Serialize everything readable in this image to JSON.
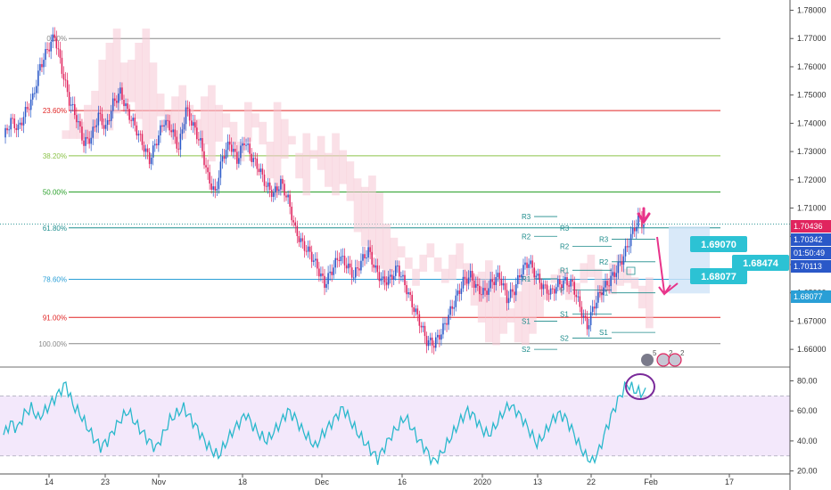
{
  "chart_data": [
    {
      "type": "candlestick",
      "title": "",
      "colors": {
        "up": "#2a58c8",
        "down": "#e0245e",
        "ichimoku_cloud": "#f6c6d4",
        "annotation": "#e8338a",
        "label_box": "#2cc2d4"
      },
      "y_ticks": [
        "1.78000",
        "1.77000",
        "1.76000",
        "1.75000",
        "1.74000",
        "1.73000",
        "1.72000",
        "1.71000",
        "1.70000",
        "1.69000",
        "1.68000",
        "1.67000",
        "1.66000"
      ],
      "ylim": [
        1.655,
        1.783
      ],
      "x_ticks": [
        "14",
        "23",
        "Nov",
        "18",
        "Dec",
        "16",
        "2020",
        "13",
        "22",
        "Feb",
        "17"
      ],
      "close_series": [
        1.735,
        1.741,
        1.738,
        1.744,
        1.749,
        1.76,
        1.766,
        1.771,
        1.759,
        1.748,
        1.742,
        1.733,
        1.735,
        1.743,
        1.738,
        1.747,
        1.751,
        1.744,
        1.739,
        1.733,
        1.727,
        1.734,
        1.741,
        1.738,
        1.731,
        1.745,
        1.739,
        1.733,
        1.721,
        1.715,
        1.728,
        1.733,
        1.727,
        1.734,
        1.728,
        1.724,
        1.718,
        1.715,
        1.719,
        1.713,
        1.702,
        1.697,
        1.694,
        1.689,
        1.683,
        1.688,
        1.693,
        1.69,
        1.686,
        1.691,
        1.695,
        1.688,
        1.684,
        1.685,
        1.689,
        1.683,
        1.676,
        1.67,
        1.663,
        1.662,
        1.666,
        1.672,
        1.678,
        1.684,
        1.686,
        1.681,
        1.68,
        1.684,
        1.686,
        1.678,
        1.681,
        1.688,
        1.691,
        1.686,
        1.682,
        1.68,
        1.683,
        1.684,
        1.683,
        1.675,
        1.668,
        1.676,
        1.681,
        1.684,
        1.688,
        1.693,
        1.7,
        1.706,
        1.704
      ],
      "fibonacci_levels": [
        {
          "label": "0.00%",
          "price": 1.77,
          "color": "#888888"
        },
        {
          "label": "23.60%",
          "price": 1.7445,
          "color": "#e02424"
        },
        {
          "label": "38.20%",
          "price": 1.7285,
          "color": "#8cc34a"
        },
        {
          "label": "50.00%",
          "price": 1.7157,
          "color": "#2aa02a"
        },
        {
          "label": "61.80%",
          "price": 1.703,
          "color": "#1f8f8f"
        },
        {
          "label": "78.60%",
          "price": 1.6848,
          "color": "#2a9fd6"
        },
        {
          "label": "91.00%",
          "price": 1.6713,
          "color": "#e02424"
        },
        {
          "label": "100.00%",
          "price": 1.662,
          "color": "#888888"
        }
      ],
      "pivot_labels": [
        {
          "label": "R3",
          "price": 1.707,
          "period": 1
        },
        {
          "label": "R2",
          "price": 1.7,
          "period": 1
        },
        {
          "label": "R1",
          "price": 1.685,
          "period": 1
        },
        {
          "label": "S1",
          "price": 1.67,
          "period": 1
        },
        {
          "label": "S2",
          "price": 1.66,
          "period": 1
        },
        {
          "label": "R3",
          "price": 1.703,
          "period": 2
        },
        {
          "label": "R2",
          "price": 1.6965,
          "period": 2
        },
        {
          "label": "R1",
          "price": 1.688,
          "period": 2
        },
        {
          "label": "P",
          "price": 1.681,
          "period": 2
        },
        {
          "label": "S1",
          "price": 1.6725,
          "period": 2
        },
        {
          "label": "S2",
          "price": 1.664,
          "period": 2
        },
        {
          "label": "R3",
          "price": 1.699,
          "period": 3
        },
        {
          "label": "R2",
          "price": 1.691,
          "period": 3
        },
        {
          "label": "R1",
          "price": 1.68,
          "period": 3
        },
        {
          "label": "S1",
          "price": 1.666,
          "period": 3
        }
      ],
      "price_axis_tags": [
        {
          "text": "1.70436",
          "color": "#e0245e"
        },
        {
          "text": "1.70342",
          "color": "#2a58c8"
        },
        {
          "text": "01:50:49",
          "color": "#2a58c8"
        },
        {
          "text": "1.70113",
          "color": "#2a58c8"
        },
        {
          "text": "1.68077",
          "color": "#2a9fd6"
        }
      ],
      "target_labels": [
        "1.69070",
        "1.68474",
        "1.68077"
      ],
      "event_markers": [
        "5",
        "2",
        "2"
      ]
    },
    {
      "type": "line",
      "title": "",
      "y_ticks": [
        "80.00",
        "60.00",
        "40.00",
        "20.00"
      ],
      "ylim": [
        18,
        88
      ],
      "bands": [
        70,
        30
      ],
      "series": [
        {
          "values": [
            44,
            52,
            48,
            58,
            62,
            55,
            60,
            66,
            72,
            78,
            64,
            58,
            50,
            42,
            36,
            40,
            48,
            55,
            60,
            52,
            46,
            40,
            35,
            44,
            54,
            58,
            62,
            55,
            48,
            40,
            34,
            30,
            38,
            46,
            52,
            58,
            50,
            44,
            40,
            46,
            52,
            60,
            56,
            48,
            42,
            36,
            44,
            50,
            56,
            62,
            54,
            46,
            40,
            34,
            28,
            36,
            44,
            50,
            56,
            48,
            40,
            34,
            26,
            30,
            38,
            46,
            54,
            60,
            56,
            48,
            44,
            50,
            58,
            64,
            60,
            54,
            46,
            38,
            44,
            52,
            58,
            56,
            48,
            38,
            30,
            26,
            34,
            48,
            60,
            70,
            78,
            74,
            72
          ]
        }
      ]
    }
  ]
}
